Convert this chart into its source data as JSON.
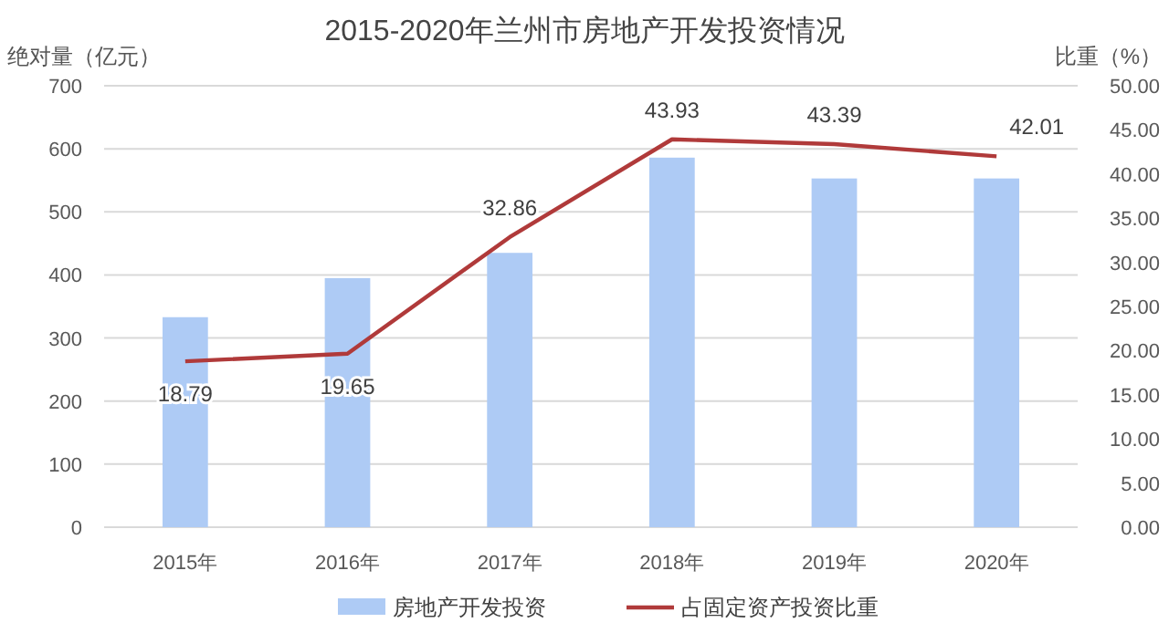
{
  "chart_data": {
    "type": "bar",
    "title": "2015-2020年兰州市房地产开发投资情况",
    "ylabel": "绝对量（亿元）",
    "y2label": "比重（%）",
    "categories": [
      "2015年",
      "2016年",
      "2017年",
      "2018年",
      "2019年",
      "2020年"
    ],
    "series": [
      {
        "name": "房地产开发投资",
        "color": "#aecbf5",
        "values": [
          333,
          395,
          435,
          586,
          553,
          553
        ]
      },
      {
        "name": "占固定资产投资比重",
        "type": "line",
        "axis": "y2",
        "color": "#b03a3a",
        "values": [
          18.79,
          19.65,
          32.86,
          43.93,
          43.39,
          42.01
        ],
        "value_labels": [
          "18.79",
          "19.65",
          "32.86",
          "43.93",
          "43.39",
          "42.01"
        ]
      }
    ],
    "ylim": [
      0,
      700
    ],
    "yticks": [
      0,
      100,
      200,
      300,
      400,
      500,
      600,
      700
    ],
    "y2lim": [
      0,
      50
    ],
    "y2ticks": [
      {
        "value": 0,
        "label": "0.00"
      },
      {
        "value": 5,
        "label": "5.00"
      },
      {
        "value": 10,
        "label": "10.00"
      },
      {
        "value": 15,
        "label": "15.00"
      },
      {
        "value": 20,
        "label": "20.00"
      },
      {
        "value": 25,
        "label": "25.00"
      },
      {
        "value": 30,
        "label": "30.00"
      },
      {
        "value": 35,
        "label": "35.00"
      },
      {
        "value": 40,
        "label": "40.00"
      },
      {
        "value": 45,
        "label": "45.00"
      },
      {
        "value": 50,
        "label": "50.00"
      }
    ],
    "grid": "y",
    "legend": "bottom",
    "marker": "none",
    "line_style": "solid"
  }
}
